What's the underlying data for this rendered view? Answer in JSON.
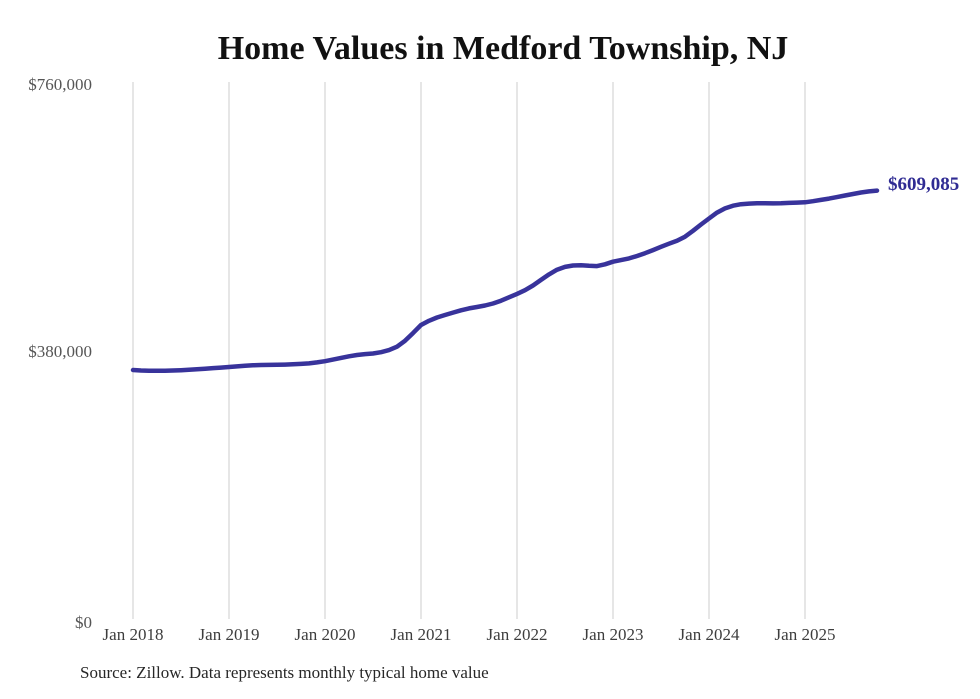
{
  "chart": {
    "title": "Home Values in Medford Township, NJ",
    "source": "Source: Zillow. Data represents monthly typical home value",
    "latest_value_label": "$609,085"
  },
  "chart_data": {
    "type": "line",
    "title": "Home Values in Medford Township, NJ",
    "series_name": "Monthly typical home value (USD)",
    "x_start": "Jan 2018",
    "x_end": "Oct 2025",
    "x_freq": "monthly",
    "values": [
      354000,
      353400,
      353000,
      352900,
      353000,
      353300,
      353800,
      354400,
      355100,
      355900,
      356700,
      357500,
      358300,
      359200,
      360100,
      360800,
      361200,
      361300,
      361400,
      361700,
      362100,
      362700,
      363500,
      364800,
      366500,
      368800,
      371200,
      373500,
      375400,
      376700,
      377500,
      379300,
      382300,
      387200,
      395500,
      406500,
      418000,
      424000,
      428700,
      432300,
      435700,
      439000,
      441600,
      443700,
      445700,
      448600,
      452600,
      457400,
      462300,
      467500,
      474200,
      482100,
      490000,
      496600,
      500700,
      502700,
      503100,
      502200,
      501800,
      504300,
      508100,
      510300,
      512800,
      516100,
      520100,
      524600,
      529200,
      533700,
      537800,
      543600,
      552000,
      561000,
      569500,
      577800,
      583800,
      587600,
      589800,
      590700,
      591100,
      591100,
      590900,
      591100,
      591600,
      592100,
      592500,
      594100,
      595900,
      597800,
      599900,
      602100,
      604300,
      606400,
      608000,
      609085
    ],
    "last_value": 609085,
    "last_value_label": "$609,085",
    "ylim": [
      0,
      760000
    ],
    "y_ticks": [
      {
        "label": "$0",
        "value": 0
      },
      {
        "label": "$380,000",
        "value": 380000
      },
      {
        "label": "$760,000",
        "value": 760000
      }
    ],
    "x_tick_labels": [
      "Jan 2018",
      "Jan 2019",
      "Jan 2020",
      "Jan 2021",
      "Jan 2022",
      "Jan 2023",
      "Jan 2024",
      "Jan 2025"
    ],
    "grid": "vertical-only",
    "legend": "none",
    "line_color": "#38339b",
    "label_color": "#2f2b93",
    "gridline_color": "#cccccc"
  }
}
